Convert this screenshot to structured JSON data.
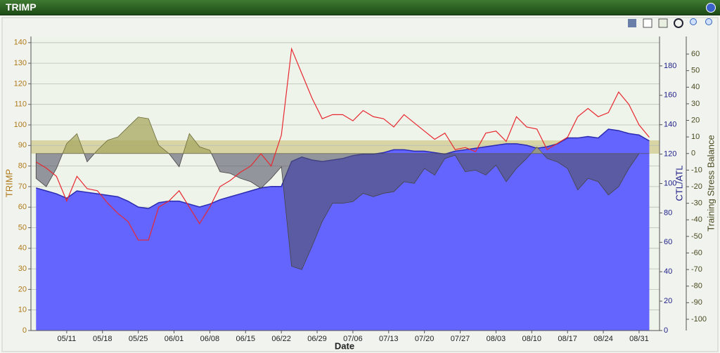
{
  "title_bar": {
    "title": "TRIMP"
  },
  "chart_data": {
    "type": "combo",
    "x": [
      "05/05",
      "05/07",
      "05/09",
      "05/11",
      "05/13",
      "05/15",
      "05/17",
      "05/19",
      "05/21",
      "05/23",
      "05/25",
      "05/27",
      "05/29",
      "05/31",
      "06/02",
      "06/04",
      "06/06",
      "06/08",
      "06/10",
      "06/12",
      "06/14",
      "06/16",
      "06/18",
      "06/20",
      "06/22",
      "06/24",
      "06/26",
      "06/28",
      "06/30",
      "07/02",
      "07/04",
      "07/06",
      "07/08",
      "07/10",
      "07/12",
      "07/14",
      "07/16",
      "07/18",
      "07/20",
      "07/22",
      "07/24",
      "07/26",
      "07/28",
      "07/30",
      "08/01",
      "08/03",
      "08/05",
      "08/07",
      "08/09",
      "08/11",
      "08/13",
      "08/15",
      "08/17",
      "08/19",
      "08/21",
      "08/23",
      "08/25",
      "08/27",
      "08/29",
      "08/31",
      "09/02"
    ],
    "xlim": [
      "05/04",
      "09/04"
    ],
    "xticks": [
      "05/11",
      "05/18",
      "05/25",
      "06/01",
      "06/08",
      "06/15",
      "06/22",
      "06/29",
      "07/06",
      "07/13",
      "07/20",
      "07/27",
      "08/03",
      "08/10",
      "08/17",
      "08/24",
      "08/31"
    ],
    "xlabel": "Date",
    "ylabel": "TRIMP",
    "ylim": [
      0,
      143
    ],
    "yticks": [
      0,
      10,
      20,
      30,
      40,
      50,
      60,
      70,
      80,
      90,
      100,
      110,
      120,
      130,
      140
    ],
    "y2label": "CTL/ATL",
    "y2lim": [
      0,
      200
    ],
    "y2ticks": [
      0,
      20,
      40,
      60,
      80,
      100,
      120,
      140,
      160,
      180
    ],
    "y3label": "Training Stress Balance",
    "y3lim": [
      -106.8,
      70.6
    ],
    "y3ticks": [
      60,
      50,
      40,
      30,
      20,
      10,
      0,
      -10,
      -20,
      -30,
      -40,
      -50,
      -60,
      -70,
      -80,
      -90,
      -100
    ],
    "grid": true,
    "series": [
      {
        "type": "area",
        "axis": "y2",
        "color": "#6464ff",
        "line_color": "#2a2ab0",
        "values": [
          97,
          95,
          93,
          90,
          95,
          94,
          93,
          92,
          91,
          88,
          84,
          83,
          87,
          88,
          88,
          86,
          84,
          86,
          89,
          91,
          93,
          95,
          97,
          98,
          98,
          115,
          118,
          116,
          115,
          116,
          117,
          119,
          120,
          120,
          121,
          123,
          123,
          122,
          122,
          121,
          120,
          122,
          123,
          124,
          125,
          126,
          127,
          127,
          126,
          124,
          125,
          127,
          131,
          131,
          132,
          131,
          137,
          136,
          134,
          133,
          129
        ]
      },
      {
        "type": "area",
        "axis": "y3",
        "color": "#a8a860",
        "negative_color": "#555566",
        "values": [
          -15,
          -20,
          -9,
          6,
          12,
          -5,
          2,
          8,
          10,
          16,
          22,
          21,
          5,
          0,
          -8,
          12,
          4,
          2,
          -11,
          -12,
          -15,
          -17,
          -21,
          -15,
          -8,
          -68,
          -70,
          -56,
          -41,
          -30,
          -30,
          -29,
          -24,
          -26,
          -24,
          -23,
          -17,
          -18,
          -9,
          -13,
          -3,
          -1,
          -11,
          -10,
          -13,
          -7,
          -17,
          -9,
          -3,
          4,
          -3,
          -5,
          -9,
          -22,
          -15,
          -17,
          -25,
          -20,
          -9,
          0,
          0
        ]
      },
      {
        "type": "line",
        "axis": "y",
        "color": "#e82830",
        "values": [
          82,
          79,
          75,
          63,
          75,
          69,
          68,
          62,
          57,
          53,
          44,
          44,
          60,
          63,
          68,
          60,
          52,
          60,
          70,
          73,
          77,
          80,
          86,
          80,
          95,
          137,
          125,
          113,
          103,
          105,
          105,
          102,
          107,
          104,
          103,
          99,
          105,
          101,
          97,
          93,
          96,
          88,
          89,
          87,
          96,
          97,
          92,
          104,
          99,
          98,
          88,
          91,
          94,
          104,
          108,
          104,
          106,
          116,
          110,
          100,
          94
        ]
      }
    ]
  }
}
